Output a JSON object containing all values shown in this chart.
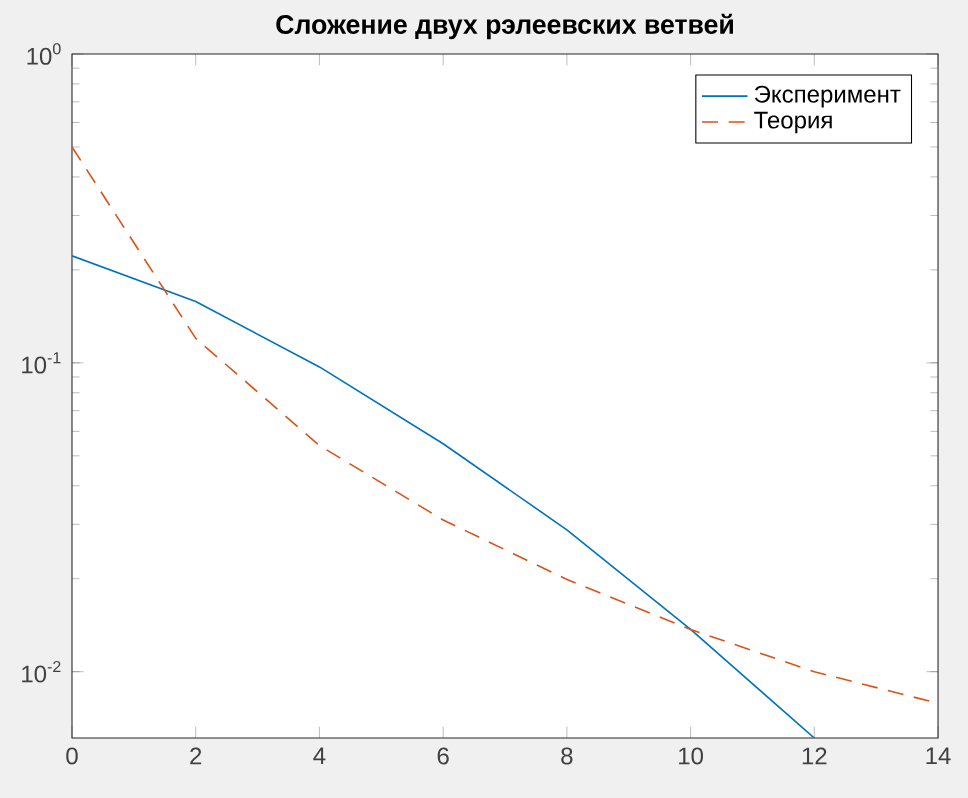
{
  "chart_data": {
    "type": "line",
    "title": "Сложение двух рэлеевских ветвей",
    "series": [
      {
        "name": "Эксперимент",
        "color": "#0072bd",
        "line_style": "solid",
        "x": [
          0,
          2,
          4,
          6,
          8,
          10,
          12
        ],
        "values": [
          0.222,
          0.158,
          0.097,
          0.0547,
          0.0288,
          0.0137,
          0.0061
        ]
      },
      {
        "name": "Теория",
        "color": "#d95319",
        "line_style": "dashed",
        "x": [
          0,
          2,
          4,
          6,
          8,
          10,
          12,
          14
        ],
        "values": [
          0.5,
          0.12,
          0.054,
          0.031,
          0.0199,
          0.0137,
          0.01,
          0.0079
        ]
      }
    ],
    "log": "y",
    "xlim": [
      0,
      14
    ],
    "ylim": [
      0.0061,
      1
    ],
    "xticks": [
      0,
      2,
      4,
      6,
      8,
      10,
      12,
      14
    ],
    "yticks": [
      {
        "value": 0.01,
        "label": "10$^{-2}$"
      },
      {
        "value": 0.1,
        "label": "10$^{-1}$"
      },
      {
        "value": 1,
        "label": "10$^{0}$"
      }
    ],
    "grid": false,
    "legend": "top right",
    "marker": "none"
  }
}
